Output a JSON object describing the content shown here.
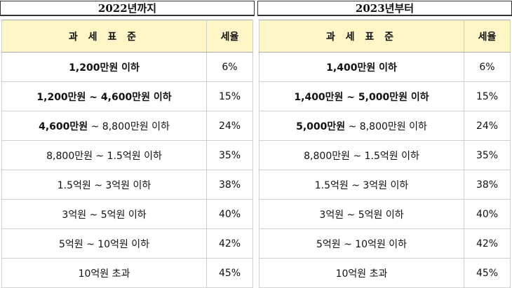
{
  "tables": [
    {
      "title": "2022년까지",
      "headers": {
        "standard": "과 세 표 준",
        "rate": "세율"
      },
      "rows": [
        {
          "bold": "1,200만원 이하",
          "rest": "",
          "rate": "6%"
        },
        {
          "bold": "1,200만원 ~ 4,600만원 이하",
          "rest": "",
          "rate": "15%"
        },
        {
          "bold": "4,600만원",
          "rest": " ~ 8,800만원 이하",
          "rate": "24%"
        },
        {
          "bold": "",
          "rest": "8,800만원 ~ 1.5억원 이하",
          "rate": "35%"
        },
        {
          "bold": "",
          "rest": "1.5억원 ~ 3억원 이하",
          "rate": "38%"
        },
        {
          "bold": "",
          "rest": "3억원 ~ 5억원 이하",
          "rate": "40%"
        },
        {
          "bold": "",
          "rest": "5억원 ~ 10억원 이하",
          "rate": "42%"
        },
        {
          "bold": "",
          "rest": "10억원 초과",
          "rate": "45%"
        }
      ]
    },
    {
      "title": "2023년부터",
      "headers": {
        "standard": "과 세 표 준",
        "rate": "세율"
      },
      "rows": [
        {
          "bold": "1,400만원 이하",
          "rest": "",
          "rate": "6%"
        },
        {
          "bold": "1,400만원 ~ 5,000만원 이하",
          "rest": "",
          "rate": "15%"
        },
        {
          "bold": "5,000만원",
          "rest": " ~ 8,800만원 이하",
          "rate": "24%"
        },
        {
          "bold": "",
          "rest": "8,800만원 ~ 1.5억원 이하",
          "rate": "35%"
        },
        {
          "bold": "",
          "rest": "1.5억원 ~ 3억원 이하",
          "rate": "38%"
        },
        {
          "bold": "",
          "rest": "3억원 ~ 5억원 이하",
          "rate": "40%"
        },
        {
          "bold": "",
          "rest": "5억원 ~ 10억원 이하",
          "rate": "42%"
        },
        {
          "bold": "",
          "rest": "10억원 초과",
          "rate": "45%"
        }
      ]
    }
  ]
}
